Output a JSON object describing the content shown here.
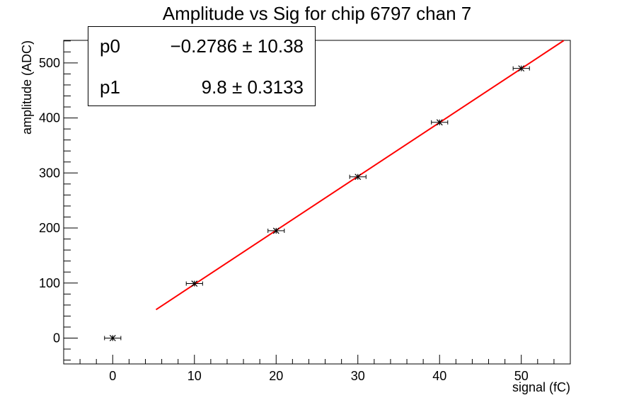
{
  "title": "Amplitude vs Sig for chip 6797 chan 7",
  "stats": [
    {
      "name": "p0",
      "value": "−0.2786 ± 10.38"
    },
    {
      "name": "p1",
      "value": "9.8 ± 0.3133"
    }
  ],
  "chart_data": {
    "type": "scatter",
    "title": "Amplitude vs Sig for chip 6797 chan 7",
    "xlabel": "signal (fC)",
    "ylabel": "amplitude (ADC)",
    "xlim": [
      -6,
      56
    ],
    "ylim": [
      -47,
      541
    ],
    "xticks": [
      0,
      10,
      20,
      30,
      40,
      50
    ],
    "yticks": [
      0,
      100,
      200,
      300,
      400,
      500
    ],
    "grid": false,
    "series": [
      {
        "x": [
          0,
          10,
          20,
          30,
          40,
          50
        ],
        "y": [
          0,
          99,
          195,
          293,
          392,
          490
        ],
        "xerr": [
          1,
          1,
          1,
          1,
          1,
          1
        ],
        "color": "#000000"
      }
    ],
    "fit": {
      "p0": -0.2786,
      "p1": 9.8,
      "x_range": [
        5.3,
        55.2
      ],
      "color": "#ff0000"
    }
  }
}
